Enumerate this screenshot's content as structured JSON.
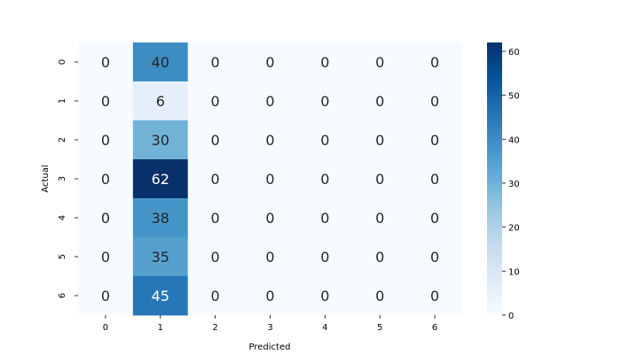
{
  "chart_data": {
    "type": "heatmap",
    "title": "",
    "xlabel": "Predicted",
    "ylabel": "Actual",
    "x_categories": [
      "0",
      "1",
      "2",
      "3",
      "4",
      "5",
      "6"
    ],
    "y_categories": [
      "0",
      "1",
      "2",
      "3",
      "4",
      "5",
      "6"
    ],
    "values": [
      [
        0,
        40,
        0,
        0,
        0,
        0,
        0
      ],
      [
        0,
        6,
        0,
        0,
        0,
        0,
        0
      ],
      [
        0,
        30,
        0,
        0,
        0,
        0,
        0
      ],
      [
        0,
        62,
        0,
        0,
        0,
        0,
        0
      ],
      [
        0,
        38,
        0,
        0,
        0,
        0,
        0
      ],
      [
        0,
        35,
        0,
        0,
        0,
        0,
        0
      ],
      [
        0,
        45,
        0,
        0,
        0,
        0,
        0
      ]
    ],
    "colormap": "Blues",
    "color_range": [
      0,
      62
    ],
    "colorbar_ticks": [
      0,
      10,
      20,
      30,
      40,
      50,
      60
    ],
    "annotated": true,
    "grid": false
  }
}
